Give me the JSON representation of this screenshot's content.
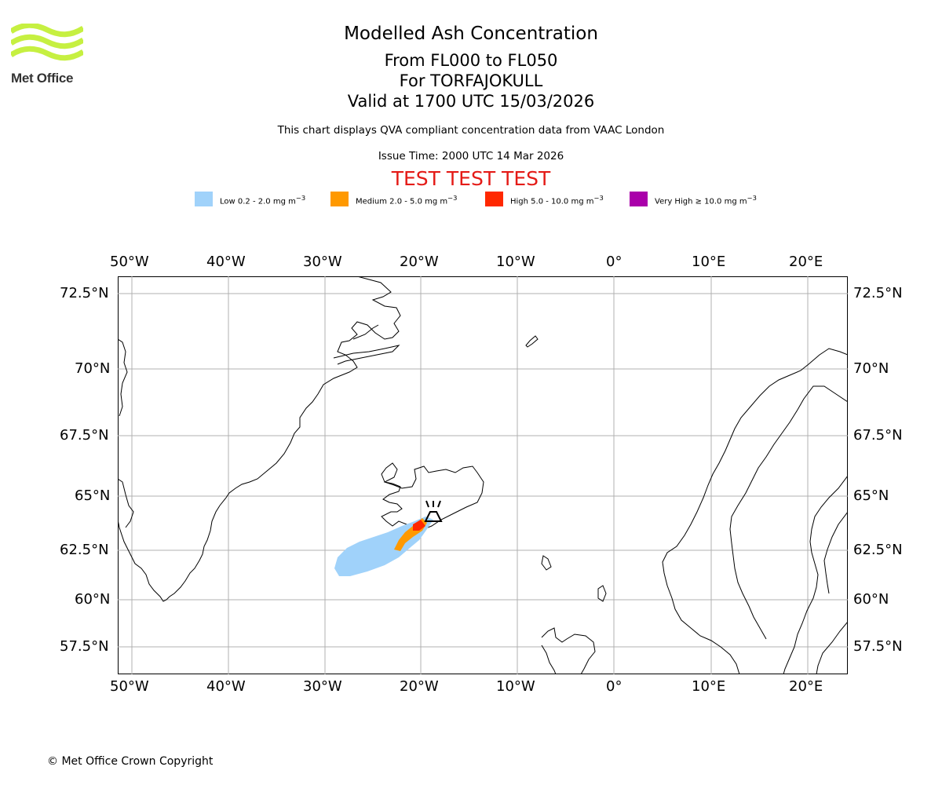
{
  "branding": {
    "logo_text": "Met Office",
    "logo_color": "#c6f041",
    "logo_text_color": "#333333"
  },
  "header": {
    "title": "Modelled Ash Concentration",
    "level_range": "From FL000 to FL050",
    "volcano": "For TORFAJOKULL",
    "valid_time": "Valid at 1700 UTC 15/03/2026",
    "description": "This chart displays QVA compliant concentration data from VAAC London",
    "issue_time": "Issue Time: 2000 UTC 14 Mar 2026",
    "test_banner": "TEST TEST TEST",
    "test_banner_color": "#e41b17"
  },
  "legend": {
    "items": [
      {
        "label": "Low 0.2 - 2.0 mg m",
        "color": "#a0d2fa"
      },
      {
        "label": "Medium 2.0 - 5.0 mg m",
        "color": "#ff9900"
      },
      {
        "label": "High 5.0 - 10.0 mg m",
        "color": "#ff2800"
      },
      {
        "label": "Very High ≥ 10.0 mg m",
        "color": "#aa00aa"
      }
    ],
    "unit_exponent": "−3"
  },
  "map": {
    "extent_lon": [
      -51.5,
      24
    ],
    "extent_lat": [
      56.5,
      73.2
    ],
    "lon_ticks": [
      "50°W",
      "40°W",
      "30°W",
      "20°W",
      "10°W",
      "0°",
      "10°E",
      "20°E"
    ],
    "lat_ticks": [
      "72.5°N",
      "70°N",
      "67.5°N",
      "65°N",
      "62.5°N",
      "60°N",
      "57.5°N"
    ],
    "volcano_location": {
      "lon": -19.1,
      "lat": 63.9
    },
    "ash_colors": {
      "low": "#a0d2fa",
      "medium": "#ff9900",
      "high": "#ff2800"
    }
  },
  "footer": {
    "copyright": "© Met Office Crown Copyright"
  }
}
